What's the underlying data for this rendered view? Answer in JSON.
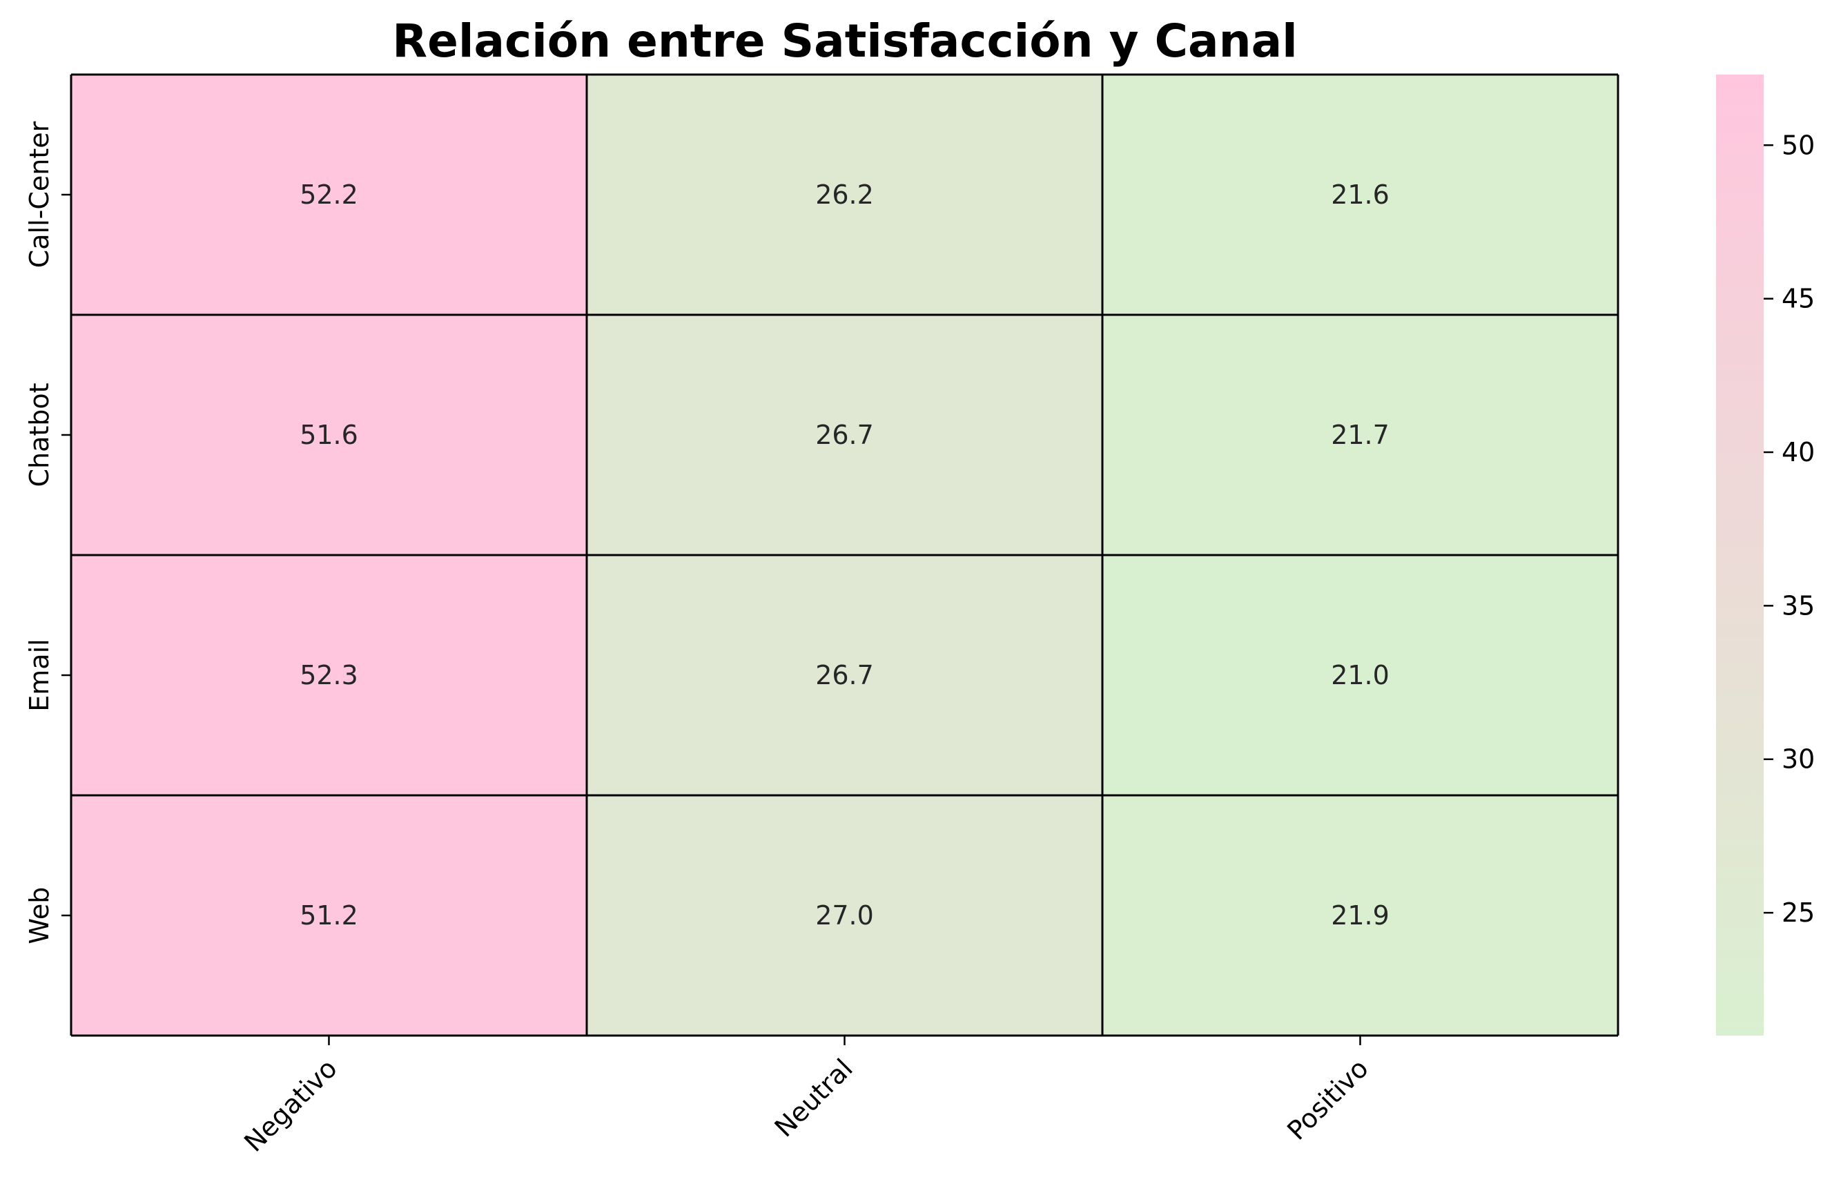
{
  "chart_data": {
    "type": "heatmap",
    "title": "Relación entre Satisfacción y Canal",
    "xlabel": "",
    "ylabel": "",
    "x_categories": [
      "Negativo",
      "Neutral",
      "Positivo"
    ],
    "y_categories": [
      "Call-Center",
      "Chatbot",
      "Email",
      "Web"
    ],
    "values": [
      [
        52.2,
        26.2,
        21.6
      ],
      [
        51.6,
        26.7,
        21.7
      ],
      [
        52.3,
        26.7,
        21.0
      ],
      [
        51.2,
        27.0,
        21.9
      ]
    ],
    "cell_labels": [
      [
        "52.2",
        "26.2",
        "21.6"
      ],
      [
        "51.6",
        "26.7",
        "21.7"
      ],
      [
        "52.3",
        "26.7",
        "21.0"
      ],
      [
        "51.2",
        "27.0",
        "21.9"
      ]
    ],
    "colorbar": {
      "min": 21.0,
      "max": 52.3,
      "ticks": [
        25,
        30,
        35,
        40,
        45,
        50
      ],
      "tick_labels": [
        "25",
        "30",
        "35",
        "40",
        "45",
        "50"
      ],
      "color_low": "#d9f0d0",
      "color_high": "#ffc6de"
    },
    "grid_line_color": "#000000"
  }
}
